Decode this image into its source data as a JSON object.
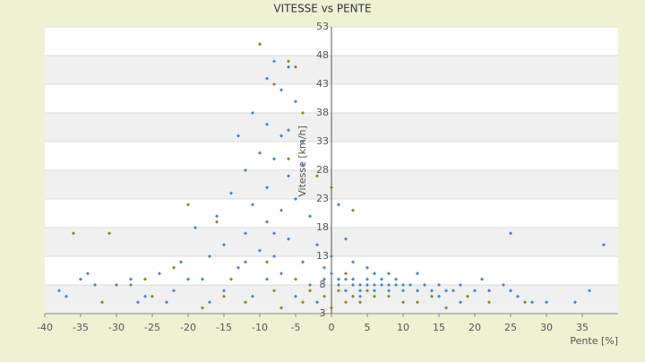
{
  "chart_data": {
    "type": "scatter",
    "title": "VITESSE vs PENTE",
    "xlabel": "Pente [%]",
    "ylabel": "Vitesse [km/h]",
    "xlim": [
      -40,
      40
    ],
    "xticks": [
      -40,
      -35,
      -30,
      -25,
      -20,
      -15,
      -10,
      -5,
      0,
      5,
      10,
      15,
      20,
      25,
      30,
      35
    ],
    "ylim": [
      3,
      53
    ],
    "yticks": [
      3,
      8,
      13,
      18,
      23,
      28,
      33,
      38,
      43,
      48,
      53
    ],
    "grid": true,
    "series": [
      {
        "color": "#3a86d4",
        "x": [
          -10,
          -8,
          -6,
          -9,
          -7,
          -5,
          -11,
          -9,
          -13,
          -7,
          -4,
          -10,
          -8,
          -12,
          -6,
          -9,
          -14,
          -5,
          -11,
          -7,
          -16,
          -3,
          -9,
          -19,
          -12,
          -6,
          -15,
          -2,
          -10,
          -17,
          -8,
          -4,
          -21,
          -13,
          -24,
          -1,
          -28,
          -18,
          -7,
          -35,
          -30,
          -22,
          -15,
          -26,
          -11,
          -33,
          -38,
          -23,
          -17,
          -5,
          -3,
          -1,
          0,
          1,
          1,
          2,
          2,
          3,
          3,
          4,
          4,
          5,
          5,
          6,
          6,
          7,
          7,
          8,
          8,
          9,
          9,
          10,
          10,
          11,
          12,
          13,
          14,
          15,
          16,
          17,
          18,
          20,
          21,
          22,
          25,
          26,
          30,
          34,
          36,
          38,
          25,
          3,
          5,
          8,
          1,
          4,
          6,
          12,
          15,
          18,
          24,
          28,
          -2,
          -9,
          -6,
          -4,
          -8,
          -12,
          -20,
          -27,
          -34,
          -37,
          2,
          0
        ],
        "values": [
          50,
          47,
          46,
          44,
          42,
          40,
          38,
          36,
          34,
          34,
          33,
          31,
          30,
          28,
          27,
          25,
          24,
          23,
          22,
          21,
          20,
          20,
          19,
          18,
          17,
          16,
          15,
          15,
          14,
          13,
          13,
          12,
          12,
          11,
          10,
          11,
          9,
          9,
          10,
          9,
          8,
          7,
          7,
          6,
          6,
          8,
          7,
          5,
          5,
          6,
          8,
          9,
          10,
          9,
          8,
          9,
          7,
          8,
          9,
          8,
          7,
          8,
          9,
          8,
          7,
          8,
          9,
          8,
          7,
          8,
          9,
          8,
          7,
          8,
          7,
          8,
          7,
          8,
          7,
          7,
          8,
          7,
          9,
          7,
          7,
          6,
          5,
          5,
          7,
          15,
          17,
          12,
          11,
          10,
          22,
          6,
          10,
          10,
          6,
          5,
          8,
          5,
          5,
          9,
          35,
          29,
          17,
          12,
          9,
          5,
          10,
          6,
          16,
          13
        ]
      },
      {
        "color": "#8a8a10",
        "x": [
          -10,
          -6,
          -5,
          -8,
          -4,
          -6,
          -2,
          0,
          3,
          -20,
          -16,
          -36,
          -31,
          -9,
          -5,
          -3,
          -1,
          0,
          1,
          2,
          3,
          4,
          6,
          8,
          10,
          12,
          14,
          16,
          19,
          22,
          27,
          -12,
          -15,
          -22,
          -25,
          -18,
          -28,
          -8,
          -4,
          -7,
          2,
          5,
          -32,
          -14,
          -26
        ],
        "values": [
          50,
          47,
          46,
          43,
          38,
          30,
          27,
          25,
          21,
          22,
          19,
          17,
          17,
          12,
          9,
          7,
          6,
          4,
          7,
          5,
          6,
          5,
          6,
          6,
          5,
          5,
          6,
          4,
          6,
          5,
          5,
          5,
          6,
          11,
          6,
          4,
          8,
          7,
          5,
          4,
          10,
          7,
          5,
          9,
          9
        ]
      }
    ]
  }
}
